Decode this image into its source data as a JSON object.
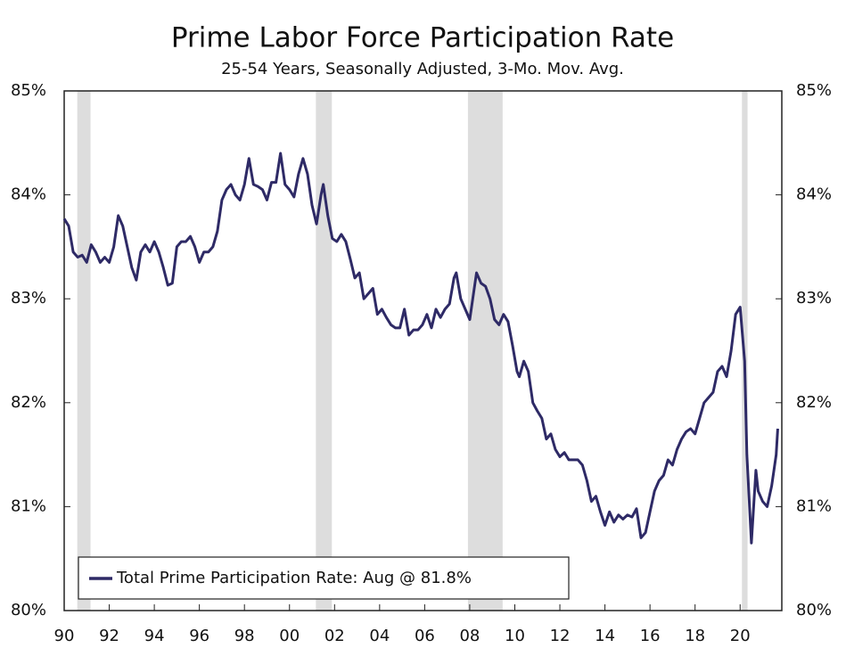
{
  "chart_data": {
    "type": "line",
    "title": "Prime Labor Force Participation Rate",
    "subtitle": "25-54 Years, Seasonally Adjusted, 3-Mo. Mov. Avg.",
    "xlim": [
      1990,
      2021.85
    ],
    "xticks": [
      {
        "value": 1990,
        "label": "90"
      },
      {
        "value": 1992,
        "label": "92"
      },
      {
        "value": 1994,
        "label": "94"
      },
      {
        "value": 1996,
        "label": "96"
      },
      {
        "value": 1998,
        "label": "98"
      },
      {
        "value": 2000,
        "label": "00"
      },
      {
        "value": 2002,
        "label": "02"
      },
      {
        "value": 2004,
        "label": "04"
      },
      {
        "value": 2006,
        "label": "06"
      },
      {
        "value": 2008,
        "label": "08"
      },
      {
        "value": 2010,
        "label": "10"
      },
      {
        "value": 2012,
        "label": "12"
      },
      {
        "value": 2014,
        "label": "14"
      },
      {
        "value": 2016,
        "label": "16"
      },
      {
        "value": 2018,
        "label": "18"
      },
      {
        "value": 2020,
        "label": "20"
      }
    ],
    "ylim": [
      80,
      85
    ],
    "yticks": [
      {
        "value": 80,
        "label": "80%"
      },
      {
        "value": 81,
        "label": "81%"
      },
      {
        "value": 82,
        "label": "82%"
      },
      {
        "value": 83,
        "label": "83%"
      },
      {
        "value": 84,
        "label": "84%"
      },
      {
        "value": 85,
        "label": "85%"
      }
    ],
    "y2lim": [
      80,
      85
    ],
    "y2ticks": [
      {
        "value": 80,
        "label": "80%"
      },
      {
        "value": 81,
        "label": "81%"
      },
      {
        "value": 82,
        "label": "82%"
      },
      {
        "value": 83,
        "label": "83%"
      },
      {
        "value": 84,
        "label": "84%"
      },
      {
        "value": 85,
        "label": "85%"
      }
    ],
    "recessions": [
      [
        1990.58,
        1991.17
      ],
      [
        2001.17,
        2001.88
      ],
      [
        2007.92,
        2009.46
      ],
      [
        2020.08,
        2020.33
      ]
    ],
    "recession_color": "#dddddd",
    "x": [
      1990.0,
      1990.2,
      1990.4,
      1990.6,
      1990.8,
      1991.0,
      1991.2,
      1991.4,
      1991.6,
      1991.8,
      1992.0,
      1992.2,
      1992.4,
      1992.6,
      1992.8,
      1993.0,
      1993.2,
      1993.4,
      1993.6,
      1993.8,
      1994.0,
      1994.2,
      1994.4,
      1994.6,
      1994.8,
      1995.0,
      1995.2,
      1995.4,
      1995.6,
      1995.8,
      1996.0,
      1996.2,
      1996.4,
      1996.6,
      1996.8,
      1997.0,
      1997.2,
      1997.4,
      1997.6,
      1997.8,
      1998.0,
      1998.2,
      1998.4,
      1998.6,
      1998.8,
      1999.0,
      1999.2,
      1999.4,
      1999.6,
      1999.8,
      2000.0,
      2000.2,
      2000.4,
      2000.6,
      2000.8,
      2001.0,
      2001.2,
      2001.4,
      2001.5,
      2001.7,
      2001.9,
      2002.1,
      2002.3,
      2002.5,
      2002.7,
      2002.9,
      2003.1,
      2003.3,
      2003.5,
      2003.7,
      2003.9,
      2004.1,
      2004.3,
      2004.5,
      2004.7,
      2004.9,
      2005.1,
      2005.3,
      2005.5,
      2005.7,
      2005.9,
      2006.1,
      2006.3,
      2006.5,
      2006.7,
      2006.9,
      2007.1,
      2007.3,
      2007.4,
      2007.6,
      2007.8,
      2008.0,
      2008.2,
      2008.3,
      2008.5,
      2008.7,
      2008.9,
      2009.1,
      2009.3,
      2009.5,
      2009.7,
      2009.9,
      2010.1,
      2010.2,
      2010.4,
      2010.6,
      2010.8,
      2011.0,
      2011.2,
      2011.4,
      2011.6,
      2011.8,
      2012.0,
      2012.2,
      2012.4,
      2012.6,
      2012.8,
      2013.0,
      2013.2,
      2013.4,
      2013.6,
      2013.8,
      2014.0,
      2014.2,
      2014.4,
      2014.6,
      2014.8,
      2015.0,
      2015.2,
      2015.4,
      2015.6,
      2015.8,
      2016.0,
      2016.2,
      2016.4,
      2016.6,
      2016.8,
      2017.0,
      2017.2,
      2017.4,
      2017.6,
      2017.8,
      2018.0,
      2018.2,
      2018.4,
      2018.6,
      2018.8,
      2019.0,
      2019.2,
      2019.4,
      2019.6,
      2019.8,
      2020.0,
      2020.2,
      2020.3,
      2020.5,
      2020.7,
      2020.8,
      2021.0,
      2021.2,
      2021.4,
      2021.6,
      2021.67
    ],
    "series": [
      {
        "name": "Total Prime Participation Rate: Aug @ 81.8%",
        "color": "#2e2a66",
        "values": [
          83.77,
          83.7,
          83.45,
          83.4,
          83.42,
          83.35,
          83.52,
          83.45,
          83.35,
          83.4,
          83.35,
          83.5,
          83.8,
          83.7,
          83.5,
          83.3,
          83.18,
          83.45,
          83.52,
          83.45,
          83.55,
          83.45,
          83.3,
          83.13,
          83.15,
          83.5,
          83.55,
          83.55,
          83.6,
          83.5,
          83.35,
          83.45,
          83.45,
          83.5,
          83.65,
          83.95,
          84.05,
          84.1,
          84.0,
          83.95,
          84.1,
          84.35,
          84.1,
          84.08,
          84.05,
          83.95,
          84.12,
          84.12,
          84.4,
          84.1,
          84.05,
          83.98,
          84.2,
          84.35,
          84.2,
          83.9,
          83.72,
          84.0,
          84.1,
          83.8,
          83.58,
          83.55,
          83.62,
          83.55,
          83.38,
          83.2,
          83.25,
          83.0,
          83.05,
          83.1,
          82.85,
          82.9,
          82.82,
          82.75,
          82.72,
          82.72,
          82.9,
          82.65,
          82.7,
          82.7,
          82.75,
          82.85,
          82.72,
          82.9,
          82.82,
          82.9,
          82.95,
          83.2,
          83.25,
          83.0,
          82.9,
          82.8,
          83.1,
          83.25,
          83.15,
          83.12,
          83.0,
          82.8,
          82.75,
          82.85,
          82.78,
          82.55,
          82.3,
          82.25,
          82.4,
          82.3,
          82.0,
          81.92,
          81.85,
          81.65,
          81.7,
          81.55,
          81.48,
          81.52,
          81.45,
          81.45,
          81.45,
          81.4,
          81.25,
          81.05,
          81.1,
          80.95,
          80.82,
          80.95,
          80.85,
          80.92,
          80.88,
          80.92,
          80.9,
          80.98,
          80.7,
          80.75,
          80.95,
          81.15,
          81.25,
          81.3,
          81.45,
          81.4,
          81.55,
          81.65,
          81.72,
          81.75,
          81.7,
          81.85,
          82.0,
          82.05,
          82.1,
          82.3,
          82.35,
          82.25,
          82.5,
          82.85,
          82.92,
          82.4,
          81.5,
          80.65,
          81.35,
          81.15,
          81.05,
          81.0,
          81.2,
          81.5,
          81.75
        ]
      }
    ]
  }
}
